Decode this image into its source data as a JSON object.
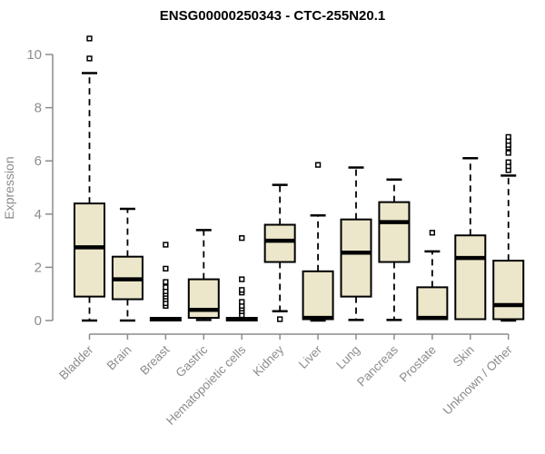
{
  "chart_data": {
    "type": "boxplot",
    "title": "ENSG00000250343 - CTC-255N20.1",
    "xlabel": "",
    "ylabel": "Expression",
    "ylim": [
      0,
      10.8
    ],
    "yticks": [
      0,
      2,
      4,
      6,
      8,
      10
    ],
    "grid": false,
    "legend": false,
    "colors": {
      "box_fill": "#ECE7CA",
      "box_border": "#000000",
      "median": "#000000",
      "whisker": "#000000",
      "outlier_stroke": "#000000",
      "outlier_fill": "#ffffff",
      "axis": "#8c8c8c",
      "tick_label": "#8c8c8c",
      "title": "#000000",
      "background": "#ffffff"
    },
    "categories": [
      "Bladder",
      "Brain",
      "Breast",
      "Gastric",
      "Hematopoietic cells",
      "Kidney",
      "Liver",
      "Lung",
      "Pancreas",
      "Prostate",
      "Skin",
      "Unknown / Other"
    ],
    "series": [
      {
        "category": "Bladder",
        "whisker_low": 0.0,
        "q1": 0.9,
        "median": 2.75,
        "q3": 4.4,
        "whisker_high": 9.3,
        "outliers": [
          9.85,
          10.6
        ]
      },
      {
        "category": "Brain",
        "whisker_low": 0.0,
        "q1": 0.8,
        "median": 1.55,
        "q3": 2.4,
        "whisker_high": 4.2,
        "outliers": []
      },
      {
        "category": "Breast",
        "whisker_low": 0.0,
        "q1": 0.0,
        "median": 0.05,
        "q3": 0.1,
        "whisker_high": 0.1,
        "outliers": [
          0.55,
          0.65,
          0.8,
          0.9,
          1.0,
          1.1,
          1.25,
          1.45,
          1.95,
          2.85
        ]
      },
      {
        "category": "Gastric",
        "whisker_low": 0.02,
        "q1": 0.1,
        "median": 0.4,
        "q3": 1.55,
        "whisker_high": 3.4,
        "outliers": []
      },
      {
        "category": "Hematopoietic cells",
        "whisker_low": 0.0,
        "q1": 0.0,
        "median": 0.05,
        "q3": 0.1,
        "whisker_high": 0.1,
        "outliers": [
          0.2,
          0.35,
          0.45,
          0.55,
          0.7,
          1.05,
          1.15,
          1.55,
          3.1
        ]
      },
      {
        "category": "Kidney",
        "whisker_low": 0.35,
        "q1": 2.2,
        "median": 3.0,
        "q3": 3.6,
        "whisker_high": 5.1,
        "outliers": [
          0.05
        ]
      },
      {
        "category": "Liver",
        "whisker_low": 0.0,
        "q1": 0.05,
        "median": 0.1,
        "q3": 1.85,
        "whisker_high": 3.95,
        "outliers": [
          5.85
        ]
      },
      {
        "category": "Lung",
        "whisker_low": 0.02,
        "q1": 0.9,
        "median": 2.55,
        "q3": 3.8,
        "whisker_high": 5.75,
        "outliers": []
      },
      {
        "category": "Pancreas",
        "whisker_low": 0.02,
        "q1": 2.2,
        "median": 3.7,
        "q3": 4.45,
        "whisker_high": 5.3,
        "outliers": []
      },
      {
        "category": "Prostate",
        "whisker_low": 0.02,
        "q1": 0.05,
        "median": 0.1,
        "q3": 1.25,
        "whisker_high": 2.6,
        "outliers": [
          3.3
        ]
      },
      {
        "category": "Skin",
        "whisker_low": 0.02,
        "q1": 0.05,
        "median": 2.35,
        "q3": 3.2,
        "whisker_high": 6.1,
        "outliers": []
      },
      {
        "category": "Unknown / Other",
        "whisker_low": 0.0,
        "q1": 0.05,
        "median": 0.58,
        "q3": 2.25,
        "whisker_high": 5.45,
        "outliers": [
          5.65,
          5.8,
          5.95,
          6.3,
          6.5,
          6.6,
          6.75,
          6.9
        ]
      }
    ]
  }
}
